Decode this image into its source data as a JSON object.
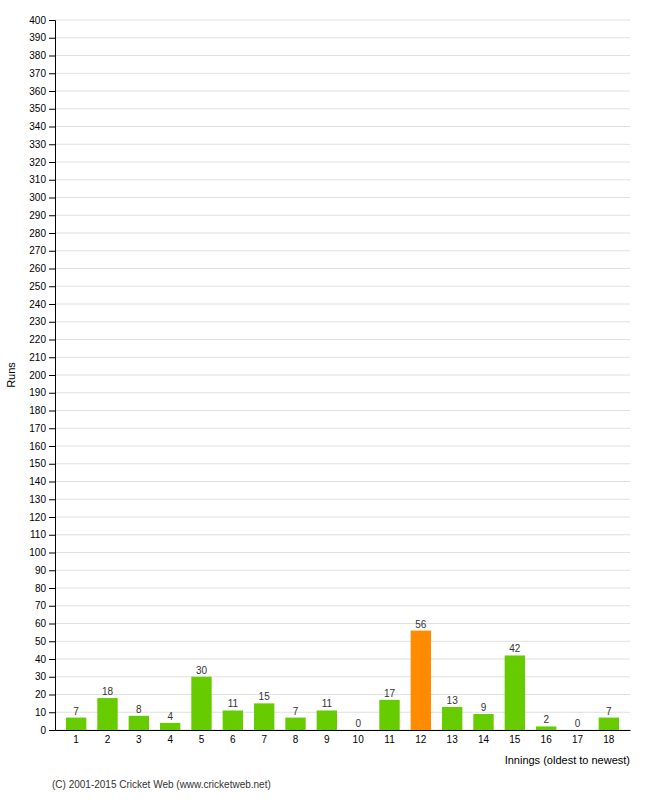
{
  "chart_data": {
    "type": "bar",
    "xlabel": "Innings (oldest to newest)",
    "ylabel": "Runs",
    "categories": [
      1,
      2,
      3,
      4,
      5,
      6,
      7,
      8,
      9,
      10,
      11,
      12,
      13,
      14,
      15,
      16,
      17,
      18
    ],
    "values": [
      7,
      18,
      8,
      4,
      30,
      11,
      15,
      7,
      11,
      0,
      17,
      56,
      13,
      9,
      42,
      2,
      0,
      7
    ],
    "colors": [
      "#66cc00",
      "#66cc00",
      "#66cc00",
      "#66cc00",
      "#66cc00",
      "#66cc00",
      "#66cc00",
      "#66cc00",
      "#66cc00",
      "#66cc00",
      "#66cc00",
      "#ff8c00",
      "#66cc00",
      "#66cc00",
      "#66cc00",
      "#66cc00",
      "#66cc00",
      "#66cc00"
    ],
    "ylim": [
      0,
      400
    ],
    "yticks": [
      0,
      10,
      20,
      30,
      40,
      50,
      60,
      70,
      80,
      90,
      100,
      110,
      120,
      130,
      140,
      150,
      160,
      170,
      180,
      190,
      200,
      210,
      220,
      230,
      240,
      250,
      260,
      270,
      280,
      290,
      300,
      310,
      320,
      330,
      340,
      350,
      360,
      370,
      380,
      390,
      400
    ],
    "grid": true,
    "data_labels": true,
    "annotations": [
      "(C) 2001-2015 Cricket Web (www.cricketweb.net)"
    ]
  }
}
